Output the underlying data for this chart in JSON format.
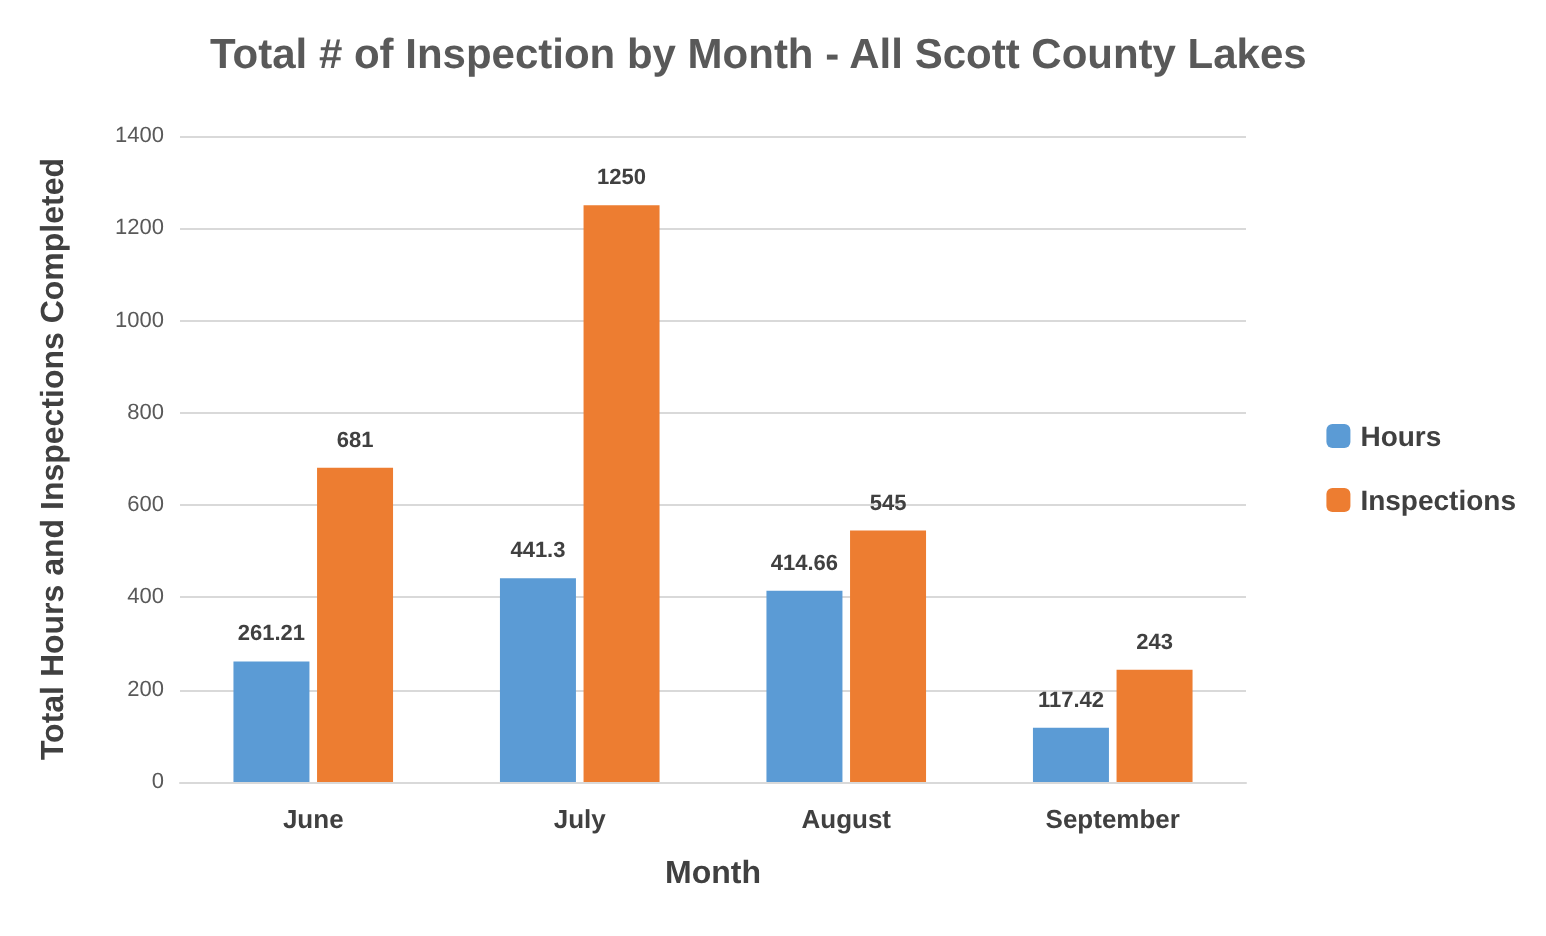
{
  "chart_data": {
    "type": "bar",
    "title": "Total # of Inspection by Month - All Scott County Lakes",
    "xlabel": "Month",
    "ylabel": "Total Hours and Inspections Completed",
    "categories": [
      "June",
      "July",
      "August",
      "September"
    ],
    "series": [
      {
        "name": "Hours",
        "color": "#5b9bd5",
        "values": [
          261.21,
          441.3,
          414.66,
          117.42
        ]
      },
      {
        "name": "Inspections",
        "color": "#ed7d31",
        "values": [
          681,
          1250,
          545,
          243
        ]
      }
    ],
    "ylim": [
      0,
      1400
    ],
    "yticks": [
      0,
      200,
      400,
      600,
      800,
      1000,
      1200,
      1400
    ],
    "grid": "y",
    "legend": "right",
    "data_labels": true
  }
}
